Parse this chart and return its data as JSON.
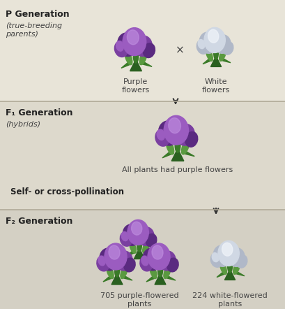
{
  "bg_color_p": "#e8e4d8",
  "bg_color_f1": "#ddd9cc",
  "bg_color_f2": "#d4d0c4",
  "divider_color": "#b0aa98",
  "text_color": "#444444",
  "bold_color": "#222222",
  "purple_dark": "#7a3fa0",
  "purple_mid": "#9b5cc0",
  "purple_light": "#c090e0",
  "purple_shadow": "#5a2a80",
  "white_dark": "#b0b8c8",
  "white_mid": "#d0d8e4",
  "white_light": "#eef2f8",
  "green_dark": "#2a6020",
  "green_mid": "#3a7a28",
  "green_light": "#5a9a40",
  "arrow_color": "#333333",
  "p_gen_label": "P Generation",
  "p_gen_sub": "(true-breeding\nparents)",
  "purple_label": "Purple\nflowers",
  "white_label": "White\nflowers",
  "f1_label": "F₁ Generation",
  "f1_sub": "(hybrids)",
  "f1_text": "All plants had purple flowers",
  "pollination_text": "Self- or cross-pollination",
  "f2_label": "F₂ Generation",
  "f2_purple_label": "705 purple-flowered\nplants",
  "f2_white_label": "224 white-flowered\nplants",
  "fig_width": 4.1,
  "fig_height": 4.42,
  "dpi": 100
}
